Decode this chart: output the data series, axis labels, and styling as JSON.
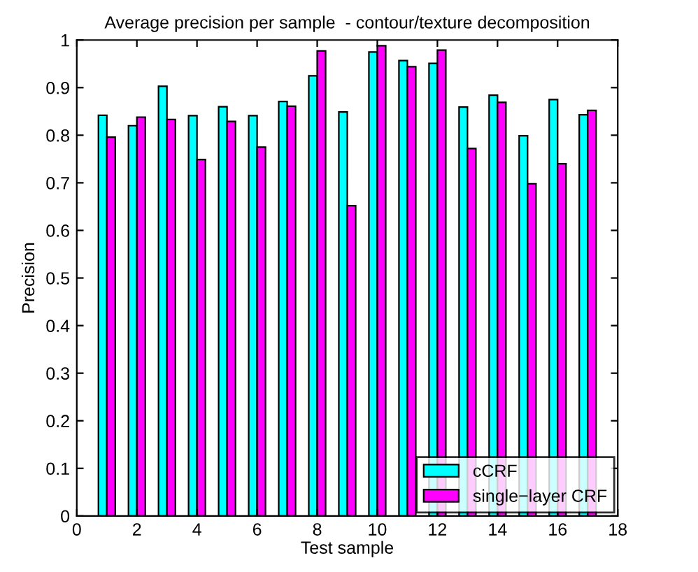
{
  "chart_data": {
    "type": "bar",
    "title": "Average precision per sample  - contour/texture decomposition",
    "xlabel": "Test sample",
    "ylabel": "Precision",
    "x": [
      1,
      2,
      3,
      4,
      5,
      6,
      7,
      8,
      9,
      10,
      11,
      12,
      13,
      14,
      15,
      16,
      17
    ],
    "series": [
      {
        "name": "cCRF",
        "color": "#00ffff",
        "values": [
          0.842,
          0.82,
          0.903,
          0.841,
          0.86,
          0.841,
          0.871,
          0.925,
          0.849,
          0.975,
          0.957,
          0.951,
          0.859,
          0.884,
          0.799,
          0.875,
          0.843
        ]
      },
      {
        "name": "single−layer CRF",
        "color": "#ff00ff",
        "values": [
          0.796,
          0.838,
          0.833,
          0.749,
          0.829,
          0.775,
          0.861,
          0.977,
          0.652,
          0.988,
          0.944,
          0.979,
          0.772,
          0.869,
          0.698,
          0.74,
          0.852
        ]
      }
    ],
    "xlim": [
      0,
      18
    ],
    "xticks": [
      0,
      2,
      4,
      6,
      8,
      10,
      12,
      14,
      16,
      18
    ],
    "ylim": [
      0,
      1
    ],
    "yticks": [
      0,
      0.1,
      0.2,
      0.3,
      0.4,
      0.5,
      0.6,
      0.7,
      0.8,
      0.9,
      1
    ],
    "grid": false,
    "legend": "bottom right"
  }
}
